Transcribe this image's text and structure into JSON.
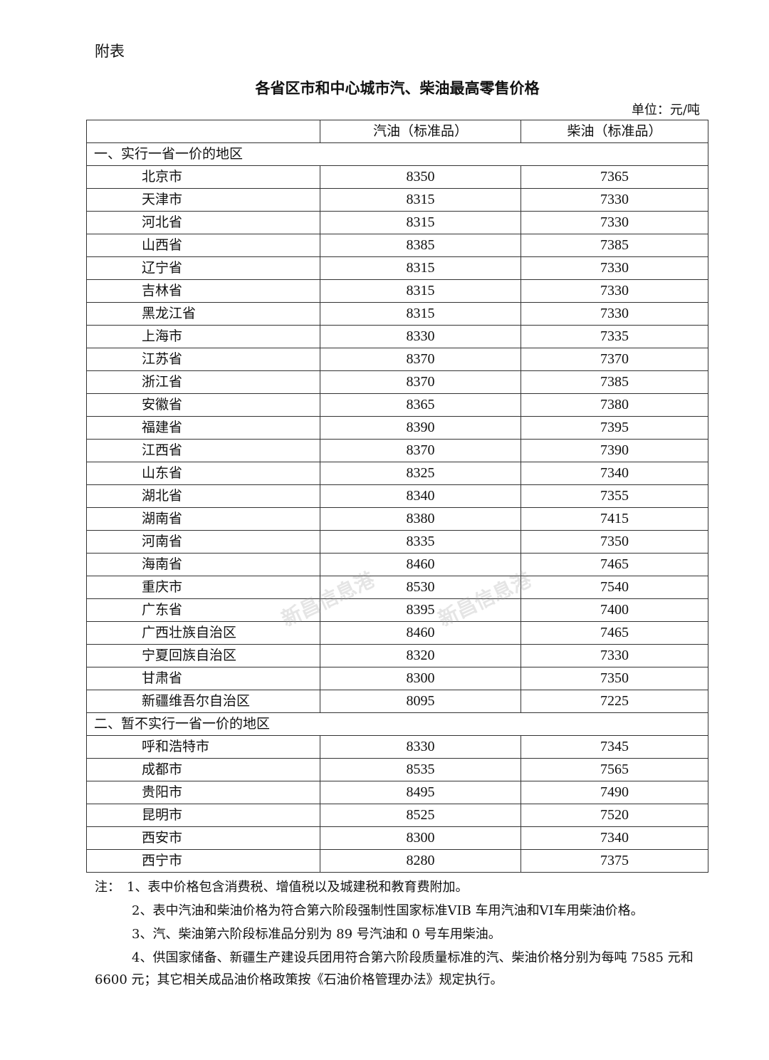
{
  "appendix_label": "附表",
  "title": "各省区市和中心城市汽、柴油最高零售价格",
  "unit": "单位：元/吨",
  "table": {
    "headers": [
      "",
      "汽油（标准品）",
      "柴油（标准品）"
    ],
    "sections": [
      {
        "label": "一、实行一省一价的地区",
        "rows": [
          [
            "北京市",
            "8350",
            "7365"
          ],
          [
            "天津市",
            "8315",
            "7330"
          ],
          [
            "河北省",
            "8315",
            "7330"
          ],
          [
            "山西省",
            "8385",
            "7385"
          ],
          [
            "辽宁省",
            "8315",
            "7330"
          ],
          [
            "吉林省",
            "8315",
            "7330"
          ],
          [
            "黑龙江省",
            "8315",
            "7330"
          ],
          [
            "上海市",
            "8330",
            "7335"
          ],
          [
            "江苏省",
            "8370",
            "7370"
          ],
          [
            "浙江省",
            "8370",
            "7385"
          ],
          [
            "安徽省",
            "8365",
            "7380"
          ],
          [
            "福建省",
            "8390",
            "7395"
          ],
          [
            "江西省",
            "8370",
            "7390"
          ],
          [
            "山东省",
            "8325",
            "7340"
          ],
          [
            "湖北省",
            "8340",
            "7355"
          ],
          [
            "湖南省",
            "8380",
            "7415"
          ],
          [
            "河南省",
            "8335",
            "7350"
          ],
          [
            "海南省",
            "8460",
            "7465"
          ],
          [
            "重庆市",
            "8530",
            "7540"
          ],
          [
            "广东省",
            "8395",
            "7400"
          ],
          [
            "广西壮族自治区",
            "8460",
            "7465"
          ],
          [
            "宁夏回族自治区",
            "8320",
            "7330"
          ],
          [
            "甘肃省",
            "8300",
            "7350"
          ],
          [
            "新疆维吾尔自治区",
            "8095",
            "7225"
          ]
        ]
      },
      {
        "label": "二、暂不实行一省一价的地区",
        "rows": [
          [
            "呼和浩特市",
            "8330",
            "7345"
          ],
          [
            "成都市",
            "8535",
            "7565"
          ],
          [
            "贵阳市",
            "8495",
            "7490"
          ],
          [
            "昆明市",
            "8525",
            "7520"
          ],
          [
            "西安市",
            "8300",
            "7340"
          ],
          [
            "西宁市",
            "8280",
            "7375"
          ]
        ]
      }
    ]
  },
  "notes": [
    "注：　1、表中价格包含消费税、增值税以及城建税和教育费附加。",
    "2、表中汽油和柴油价格为符合第六阶段强制性国家标准VIB 车用汽油和VI车用柴油价格。",
    "3、汽、柴油第六阶段标准品分别为 89 号汽油和 0 号车用柴油。",
    "4、供国家储备、新疆生产建设兵团用符合第六阶段质量标准的汽、柴油价格分别为每吨 7585 元和 6600 元；其它相关成品油价格政策按《石油价格管理办法》规定执行。"
  ],
  "watermark": "新昌信息港 www.zjxc.com"
}
